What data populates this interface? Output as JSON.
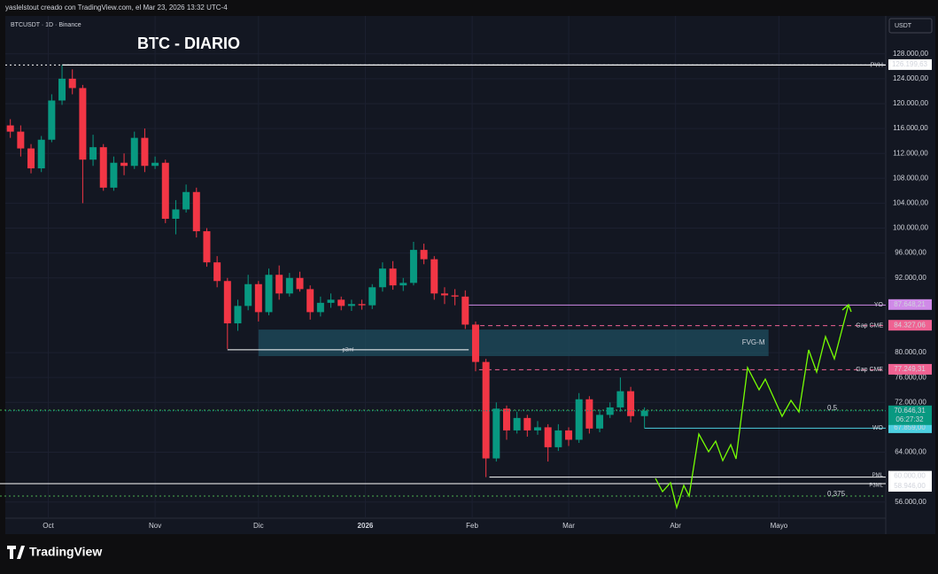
{
  "header": {
    "attribution": "yaslelstout creado con TradingView.com, el Mar 23, 2026 13:32 UTC-4",
    "symbol": "BTCUSDT · 1D · Binance",
    "currency": "USDT",
    "brand": "TradingView"
  },
  "chart_data": {
    "type": "candlestick",
    "title": "BTC - DIARIO",
    "x": [
      "2025-09-20",
      "2025-09-23",
      "2025-09-26",
      "2025-09-29",
      "2025-10-02",
      "2025-10-05",
      "2025-10-08",
      "2025-10-11",
      "2025-10-14",
      "2025-10-17",
      "2025-10-20",
      "2025-10-23",
      "2025-10-26",
      "2025-10-29",
      "2025-11-01",
      "2025-11-04",
      "2025-11-07",
      "2025-11-10",
      "2025-11-13",
      "2025-11-16",
      "2025-11-19",
      "2025-11-22",
      "2025-11-25",
      "2025-11-28",
      "2025-12-01",
      "2025-12-04",
      "2025-12-07",
      "2025-12-10",
      "2025-12-13",
      "2025-12-16",
      "2025-12-19",
      "2025-12-22",
      "2025-12-25",
      "2025-12-28",
      "2025-12-31",
      "2026-01-03",
      "2026-01-06",
      "2026-01-09",
      "2026-01-12",
      "2026-01-15",
      "2026-01-18",
      "2026-01-21",
      "2026-01-24",
      "2026-01-27",
      "2026-01-30",
      "2026-02-02",
      "2026-02-05",
      "2026-02-08",
      "2026-02-11",
      "2026-02-14",
      "2026-02-17",
      "2026-02-20",
      "2026-02-23",
      "2026-02-26",
      "2026-03-01",
      "2026-03-04",
      "2026-03-07",
      "2026-03-10",
      "2026-03-13",
      "2026-03-16",
      "2026-03-19",
      "2026-03-23"
    ],
    "open": [
      116500,
      115500,
      112800,
      109600,
      114200,
      120500,
      124000,
      122500,
      111000,
      113000,
      106500,
      110500,
      110000,
      114500,
      110000,
      110500,
      101500,
      103000,
      105800,
      99500,
      94500,
      91500,
      84700,
      87500,
      91000,
      86500,
      92500,
      89500,
      92000,
      90200,
      86500,
      88000,
      88500,
      87500,
      87800,
      87600,
      90500,
      93500,
      90800,
      91200,
      96500,
      95000,
      89500,
      89200,
      89000,
      84500,
      78500,
      63000,
      71000,
      67500,
      69500,
      67500,
      68000,
      64800,
      67500,
      66000,
      72500,
      67800,
      70000,
      71200,
      73800,
      69800
    ],
    "high": [
      117500,
      116500,
      113500,
      114800,
      121500,
      126199,
      125500,
      123000,
      115000,
      113500,
      111500,
      112000,
      115500,
      116000,
      111500,
      111000,
      104500,
      107000,
      106500,
      100000,
      95500,
      92000,
      88500,
      92500,
      91500,
      93500,
      94000,
      92800,
      93000,
      90800,
      89000,
      89500,
      89000,
      88500,
      88500,
      91000,
      94500,
      94700,
      92000,
      97800,
      97500,
      95500,
      90500,
      90200,
      90000,
      85000,
      79000,
      72000,
      71500,
      70500,
      70000,
      69000,
      68500,
      68500,
      68000,
      73500,
      73000,
      70800,
      72000,
      76000,
      74500,
      71200
    ],
    "low": [
      114500,
      111500,
      108800,
      109000,
      113800,
      119800,
      121500,
      104000,
      110000,
      106000,
      106000,
      108500,
      109500,
      109000,
      109500,
      100800,
      99000,
      102500,
      98500,
      93800,
      90500,
      80600,
      83500,
      86800,
      85000,
      86000,
      88500,
      89000,
      89800,
      85300,
      85800,
      87200,
      86800,
      86700,
      86900,
      87000,
      89800,
      90100,
      89900,
      90800,
      94200,
      88500,
      87800,
      87600,
      83800,
      77000,
      60000,
      62500,
      66000,
      67000,
      66500,
      66800,
      62500,
      64200,
      65000,
      65500,
      67000,
      67200,
      69500,
      70500,
      68800,
      67800
    ],
    "close": [
      115500,
      112800,
      109600,
      114200,
      120500,
      124000,
      122500,
      111000,
      113000,
      106500,
      110500,
      110000,
      114500,
      110000,
      110500,
      101500,
      103000,
      105800,
      99500,
      94500,
      91500,
      84700,
      87500,
      91000,
      86500,
      92500,
      89500,
      92000,
      90200,
      86500,
      88000,
      88500,
      87500,
      87800,
      87600,
      90500,
      93500,
      90800,
      91200,
      96500,
      95000,
      89500,
      89200,
      89000,
      84500,
      78500,
      63000,
      71000,
      67500,
      69500,
      67500,
      68000,
      64800,
      67500,
      66000,
      72500,
      67800,
      70000,
      71200,
      73800,
      69800,
      70646.31
    ],
    "up_color": "#089981",
    "down_color": "#f23645",
    "xlim": [
      "2025-09-17",
      "2026-06-01"
    ],
    "xticks": [
      {
        "value": "2025-10-01",
        "label": "Oct"
      },
      {
        "value": "2025-11-01",
        "label": "Nov"
      },
      {
        "value": "2025-12-01",
        "label": "Dic"
      },
      {
        "value": "2026-01-01",
        "label": "2026"
      },
      {
        "value": "2026-02-01",
        "label": "Feb"
      },
      {
        "value": "2026-03-01",
        "label": "Mar"
      },
      {
        "value": "2026-04-01",
        "label": "Abr"
      },
      {
        "value": "2026-05-01",
        "label": "Mayo"
      }
    ],
    "ylim": [
      53400,
      133800
    ],
    "yticks": [
      {
        "value": 128000,
        "label": "128.000,00"
      },
      {
        "value": 124000,
        "label": "124.000,00"
      },
      {
        "value": 120000,
        "label": "120.000,00"
      },
      {
        "value": 116000,
        "label": "116.000,00"
      },
      {
        "value": 112000,
        "label": "112.000,00"
      },
      {
        "value": 108000,
        "label": "108.000,00"
      },
      {
        "value": 104000,
        "label": "104.000,00"
      },
      {
        "value": 100000,
        "label": "100.000,00"
      },
      {
        "value": 96000,
        "label": "96.000,00"
      },
      {
        "value": 92000,
        "label": "92.000,00"
      },
      {
        "value": 80000,
        "label": "80.000,00"
      },
      {
        "value": 76000,
        "label": "76.000,00"
      },
      {
        "value": 72000,
        "label": "72.000,00"
      },
      {
        "value": 64000,
        "label": "64.000,00"
      },
      {
        "value": 56000,
        "label": "56.000,00"
      }
    ],
    "levels": [
      {
        "name": "PYH",
        "value": 126199.63,
        "label": "126.199,63",
        "color": "#ffffff",
        "start": "2025-10-05"
      },
      {
        "name": "YO",
        "value": 87648.21,
        "label": "87.648,21",
        "color": "#d08ae8",
        "start": "2026-01-31"
      },
      {
        "name": "Gap CME",
        "value": 84327.06,
        "label": "84.327,06",
        "color": "#f06292",
        "start": "2026-02-01"
      },
      {
        "name": "Gap CME",
        "value": 77249.31,
        "label": "77.249,31",
        "color": "#f06292",
        "start": "2026-02-03"
      },
      {
        "name": "0,5",
        "value": 70760,
        "color": "#4caf50",
        "start": "2025-09-17"
      },
      {
        "name": "WO",
        "value": 67859.0,
        "label": "67.859,00",
        "color": "#4dd0e1",
        "start": "2026-03-23"
      },
      {
        "name": "PML",
        "value": 60000,
        "label": "60.000,00",
        "color": "#ffffff",
        "start": "2026-02-06"
      },
      {
        "name": "P3ML",
        "value": 58946,
        "label": "58.946,00",
        "color": "#ffffff",
        "start": "2025-09-17"
      },
      {
        "name": "0,375",
        "value": 56960,
        "color": "#4caf50",
        "start": "2025-09-17"
      }
    ],
    "zone": {
      "name": "FVG-M",
      "top": 83700,
      "bottom": 79440,
      "start": "2025-12-01",
      "end": "2026-04-28"
    },
    "p3ml_line": {
      "name": "p3ml",
      "value": 80450,
      "start": "2025-11-22",
      "end": "2026-01-31"
    },
    "last_price": {
      "value": 70646.31,
      "label": "70.646,31",
      "countdown": "06:27:32"
    }
  }
}
